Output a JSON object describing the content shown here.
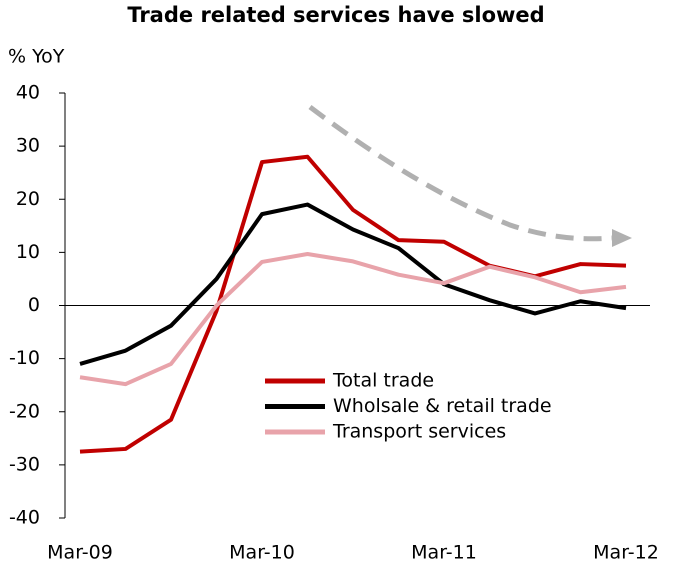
{
  "chart_data": {
    "type": "line",
    "title": "Trade related services have slowed",
    "y_label": "% YoY",
    "categories": [
      "Mar-09",
      null,
      null,
      null,
      "Mar-10",
      null,
      null,
      null,
      "Mar-11",
      null,
      null,
      null,
      "Mar-12"
    ],
    "series": [
      {
        "name": "Total trade",
        "color": "#c00000",
        "values": [
          -27.5,
          -27,
          -21.5,
          -1,
          27,
          28,
          18,
          12.3,
          12,
          7.5,
          5.5,
          7.8,
          7.5
        ]
      },
      {
        "name": "Wholsale & retail trade",
        "color": "#000000",
        "values": [
          -11,
          -8.5,
          -3.8,
          5,
          17.2,
          19,
          14.3,
          10.8,
          4,
          1,
          -1.5,
          0.8,
          -0.5
        ]
      },
      {
        "name": "Transport services",
        "color": "#e8a3aa",
        "values": [
          -13.5,
          -14.8,
          -11,
          0,
          8.2,
          9.7,
          8.3,
          5.8,
          4.2,
          7.3,
          5.3,
          2.5,
          3.5
        ]
      }
    ],
    "ylim": [
      -40,
      40
    ],
    "yticks": [
      -40,
      -30,
      -20,
      -10,
      0,
      10,
      20,
      30,
      40
    ],
    "legend": "lower right"
  }
}
